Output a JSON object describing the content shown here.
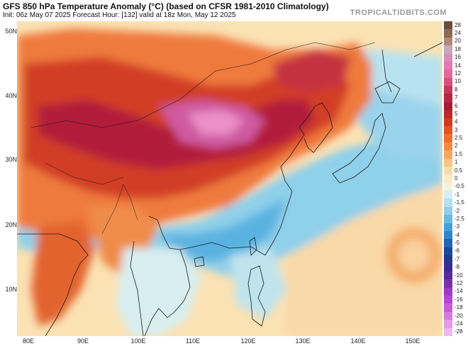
{
  "header": {
    "title": "GFS 850 hPa Temperature Anomaly (°C) (based on CFSR 1981-2010 Climatology)",
    "subtitle": "Init: 06z May 07 2025   Forecast Hour: [132]   valid at 18z Mon, May 12 2025",
    "brand": "TROPICALTIDBITS.COM"
  },
  "map": {
    "lat_labels": [
      "50N",
      "40N",
      "30N",
      "20N",
      "10N"
    ],
    "lon_labels": [
      "80E",
      "90E",
      "100E",
      "110E",
      "120E",
      "130E",
      "140E",
      "150E"
    ]
  },
  "colorbar": {
    "labels": [
      "28",
      "24",
      "20",
      "18",
      "16",
      "14",
      "12",
      "10",
      "8",
      "7",
      "6",
      "5",
      "4",
      "3",
      "2.5",
      "2",
      "1.5",
      "1",
      "0.5",
      "0",
      "-0.5",
      "-1",
      "-1.5",
      "-2",
      "-2.5",
      "-3",
      "-4",
      "-5",
      "-6",
      "-7",
      "-8",
      "-10",
      "-12",
      "-14",
      "-16",
      "-18",
      "-20",
      "-24",
      "-28"
    ],
    "colors": [
      "#6b4a3a",
      "#8e6a55",
      "#b08a72",
      "#c8a7b8",
      "#d58fb8",
      "#e07ab0",
      "#e06a9e",
      "#d4527e",
      "#c23a5e",
      "#b02a44",
      "#a51f32",
      "#b92a28",
      "#cf3a22",
      "#e0552a",
      "#ea7236",
      "#f08c48",
      "#f5a865",
      "#f8c487",
      "#fadca8",
      "#fbe9c8",
      "#f2f2d8",
      "#d6eef2",
      "#b5e0ee",
      "#8fcde8",
      "#6cb8e0",
      "#4b9fd5",
      "#3484c6",
      "#2366b0",
      "#1a4c95",
      "#233a8a",
      "#3b2c8c",
      "#5a2a96",
      "#7a30a8",
      "#9a3cbc",
      "#b448cc",
      "#c65cd6",
      "#d67ae0",
      "#e49ae8",
      "#f0b8ef"
    ]
  }
}
